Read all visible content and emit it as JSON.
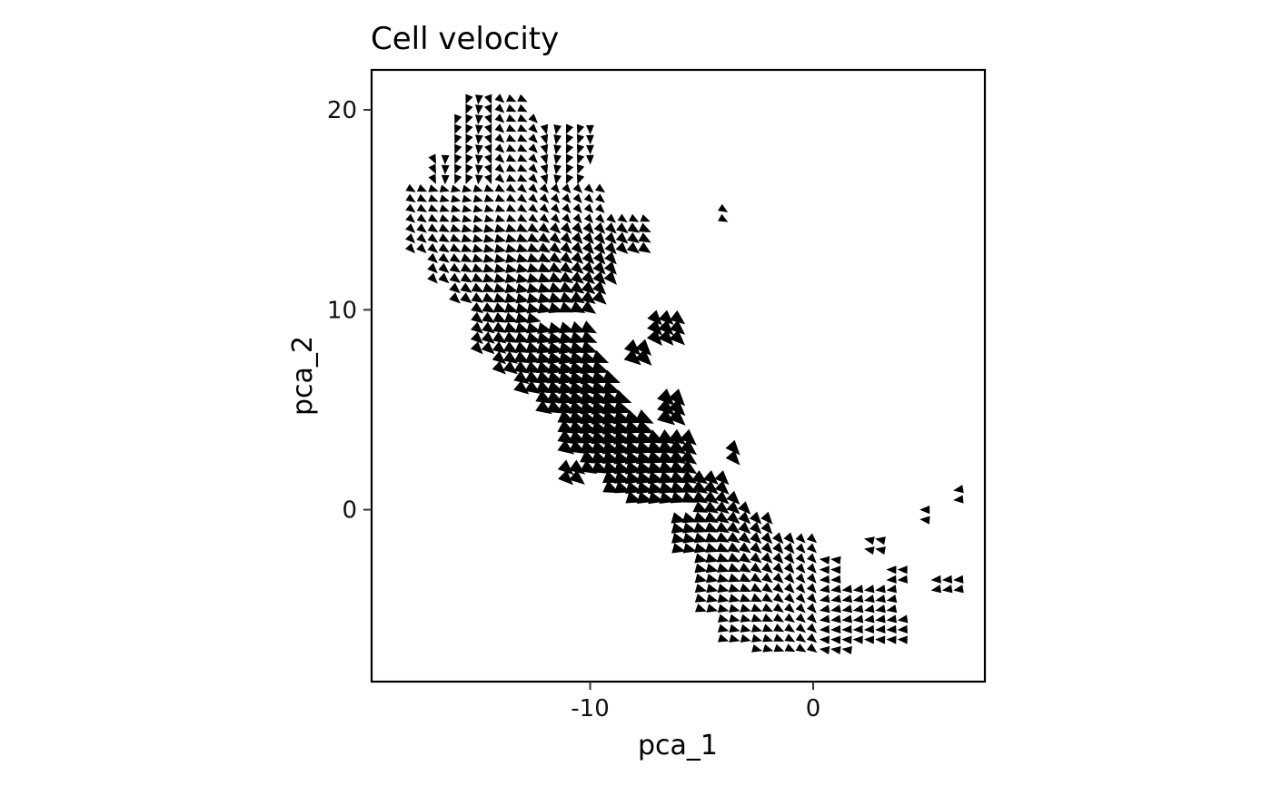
{
  "chart_data": {
    "type": "vector-field",
    "title": "Cell velocity",
    "xlabel": "pca_1",
    "ylabel": "pca_2",
    "xlim": [
      -19.8,
      7.7
    ],
    "ylim": [
      -8.6,
      22.0
    ],
    "x_ticks": [
      {
        "value": -10,
        "label": "-10"
      },
      {
        "value": 0,
        "label": "0"
      }
    ],
    "y_ticks": [
      {
        "value": 0,
        "label": "0"
      },
      {
        "value": 10,
        "label": "10"
      },
      {
        "value": 20,
        "label": "20"
      }
    ],
    "grid": false,
    "legend": "none",
    "grid_spacing": 0.5,
    "arrow_color": "#000000",
    "regions": [
      {
        "xmin": -15.8,
        "xmax": -12.8,
        "ymin": 19.8,
        "ymax": 20.8
      },
      {
        "xmin": -16.3,
        "xmax": -12.3,
        "ymin": 17.3,
        "ymax": 19.8
      },
      {
        "xmin": -14.3,
        "xmax": -9.8,
        "ymin": 17.3,
        "ymax": 19.3
      },
      {
        "xmin": -17.3,
        "xmax": -10.3,
        "ymin": 15.8,
        "ymax": 17.8
      },
      {
        "xmin": -18.3,
        "xmax": -9.3,
        "ymin": 14.8,
        "ymax": 16.3
      },
      {
        "xmin": -18.3,
        "xmax": -7.3,
        "ymin": 12.8,
        "ymax": 14.8
      },
      {
        "xmin": -17.3,
        "xmax": -8.8,
        "ymin": 11.3,
        "ymax": 12.8
      },
      {
        "xmin": -16.3,
        "xmax": -9.3,
        "ymin": 10.3,
        "ymax": 11.3
      },
      {
        "xmin": -15.3,
        "xmax": -12.3,
        "ymin": 9.3,
        "ymax": 10.8
      },
      {
        "xmin": -12.8,
        "xmax": -9.8,
        "ymin": 9.8,
        "ymax": 10.8
      },
      {
        "xmin": -15.3,
        "xmax": -9.8,
        "ymin": 7.8,
        "ymax": 9.3
      },
      {
        "xmin": -14.3,
        "xmax": -9.3,
        "ymin": 6.8,
        "ymax": 7.8
      },
      {
        "xmin": -13.3,
        "xmax": -8.8,
        "ymin": 5.8,
        "ymax": 6.8
      },
      {
        "xmin": -12.3,
        "xmax": -8.3,
        "ymin": 4.8,
        "ymax": 5.8
      },
      {
        "xmin": -11.3,
        "xmax": -7.3,
        "ymin": 3.8,
        "ymax": 4.8
      },
      {
        "xmin": -11.3,
        "xmax": -5.3,
        "ymin": 2.8,
        "ymax": 3.8
      },
      {
        "xmin": -10.3,
        "xmax": -5.3,
        "ymin": 1.8,
        "ymax": 2.8
      },
      {
        "xmin": -9.3,
        "xmax": -3.8,
        "ymin": 0.8,
        "ymax": 1.8
      },
      {
        "xmin": -8.3,
        "xmax": -3.3,
        "ymin": 0.3,
        "ymax": 0.8
      },
      {
        "xmin": -5.3,
        "xmax": -2.8,
        "ymin": -0.8,
        "ymax": 0.3
      },
      {
        "xmin": -6.3,
        "xmax": -1.8,
        "ymin": -1.3,
        "ymax": -0.3
      },
      {
        "xmin": -6.3,
        "xmax": 0.3,
        "ymin": -2.3,
        "ymax": -1.3
      },
      {
        "xmin": -5.3,
        "xmax": 1.3,
        "ymin": -3.8,
        "ymax": -2.3
      },
      {
        "xmin": -5.3,
        "xmax": 3.8,
        "ymin": -5.3,
        "ymax": -3.8
      },
      {
        "xmin": -4.3,
        "xmax": 4.3,
        "ymin": -5.8,
        "ymax": -5.3
      },
      {
        "xmin": -4.3,
        "xmax": 4.3,
        "ymin": -6.8,
        "ymax": -5.8
      },
      {
        "xmin": -2.8,
        "xmax": 1.8,
        "ymin": -7.3,
        "ymax": -6.8
      },
      {
        "xmin": 2.3,
        "xmax": 3.3,
        "ymin": -2.3,
        "ymax": -1.3
      },
      {
        "xmin": 3.3,
        "xmax": 4.3,
        "ymin": -3.8,
        "ymax": -2.8
      },
      {
        "xmin": 5.2,
        "xmax": 6.8,
        "ymin": -4.3,
        "ymax": -3.3
      },
      {
        "xmin": 4.6,
        "xmax": 5.3,
        "ymin": -0.8,
        "ymax": 0.3
      },
      {
        "xmin": 6.1,
        "xmax": 6.8,
        "ymin": 0.3,
        "ymax": 1.0
      },
      {
        "xmin": -4.3,
        "xmax": -3.6,
        "ymin": 14.3,
        "ymax": 15.3
      },
      {
        "xmin": -7.3,
        "xmax": -5.8,
        "ymin": 8.3,
        "ymax": 9.8
      },
      {
        "xmin": -8.3,
        "xmax": -7.3,
        "ymin": 7.3,
        "ymax": 8.3
      },
      {
        "xmin": -6.8,
        "xmax": -5.8,
        "ymin": 4.3,
        "ymax": 5.8
      },
      {
        "xmin": -11.3,
        "xmax": -10.3,
        "ymin": 1.3,
        "ymax": 2.3
      },
      {
        "xmin": -3.8,
        "xmax": -3.3,
        "ymin": 2.3,
        "ymax": 3.0
      }
    ]
  }
}
